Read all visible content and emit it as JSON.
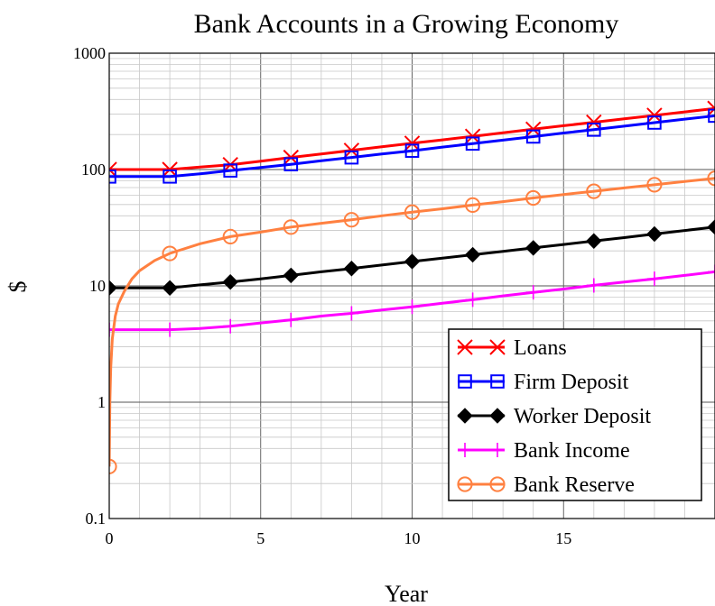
{
  "chart_data": {
    "type": "line",
    "title": "Bank Accounts in a Growing Economy",
    "xlabel": "Year",
    "ylabel": "$",
    "xlim": [
      0,
      20
    ],
    "ylim": [
      0.1,
      1000
    ],
    "yscale": "log",
    "grid": true,
    "legend_position": "bottom-right",
    "x_ticks": [
      0,
      5,
      10,
      15
    ],
    "x_tick_labels": [
      "0",
      "5",
      "10",
      "15"
    ],
    "y_ticks": [
      0.1,
      1,
      10,
      100,
      1000
    ],
    "y_tick_labels": [
      "0.1",
      "1",
      "10",
      "100",
      "1000"
    ],
    "x": [
      0,
      1,
      2,
      3,
      4,
      5,
      6,
      7,
      8,
      9,
      10,
      11,
      12,
      13,
      14,
      15,
      16,
      17,
      18,
      19,
      20
    ],
    "series": [
      {
        "name": "Loans",
        "color": "#ff0000",
        "marker": "x-cross",
        "values": [
          100,
          100,
          100,
          105,
          110,
          118,
          127,
          136,
          146,
          157,
          168,
          180,
          193,
          207,
          222,
          238,
          255,
          273,
          292,
          313,
          335
        ]
      },
      {
        "name": "Firm Deposit",
        "color": "#0000ff",
        "marker": "open-square",
        "values": [
          87,
          87,
          87,
          92,
          98,
          104,
          111,
          119,
          127,
          136,
          145,
          156,
          167,
          179,
          192,
          206,
          220,
          236,
          253,
          271,
          290
        ]
      },
      {
        "name": "Worker Deposit",
        "color": "#000000",
        "marker": "filled-diamond",
        "values": [
          9.6,
          9.6,
          9.6,
          10.2,
          10.8,
          11.5,
          12.3,
          13.2,
          14.1,
          15.1,
          16.2,
          17.3,
          18.5,
          19.8,
          21.2,
          22.7,
          24.3,
          26,
          27.9,
          29.9,
          32
        ]
      },
      {
        "name": "Bank Income",
        "color": "#ff00ff",
        "marker": "plus",
        "values": [
          4.2,
          4.2,
          4.2,
          4.3,
          4.5,
          4.8,
          5.1,
          5.5,
          5.8,
          6.2,
          6.6,
          7.1,
          7.6,
          8.2,
          8.8,
          9.4,
          10.1,
          10.8,
          11.5,
          12.3,
          13.2
        ]
      },
      {
        "name": "Bank Reserve",
        "color": "#ff8040",
        "marker": "open-circle",
        "x": [
          0,
          0.02,
          0.05,
          0.1,
          0.2,
          0.3,
          0.5,
          0.75,
          1,
          1.5,
          2,
          3,
          4,
          5,
          6,
          7,
          8,
          9,
          10,
          11,
          12,
          13,
          14,
          15,
          16,
          17,
          18,
          19,
          20
        ],
        "values": [
          0.28,
          1,
          2,
          3.5,
          5.5,
          7,
          9,
          11.5,
          13.5,
          16.5,
          19,
          23,
          26.5,
          29,
          32,
          34.5,
          37,
          40,
          43,
          46,
          49.5,
          53,
          57,
          61,
          65,
          69.5,
          74,
          79,
          84
        ]
      }
    ]
  }
}
